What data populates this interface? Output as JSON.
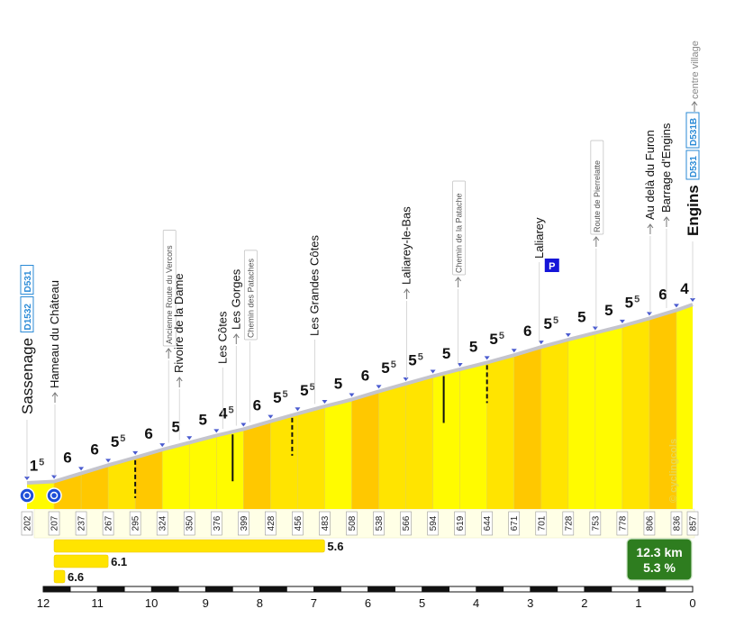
{
  "chart_data": {
    "type": "area",
    "title": "",
    "xlabel": "",
    "ylabel": "",
    "x_axis": {
      "direction": "descending",
      "range_km": [
        12,
        0
      ],
      "tick_labels": [
        "12",
        "11",
        "10",
        "9",
        "8",
        "7",
        "6",
        "5",
        "4",
        "3",
        "2",
        "1",
        "0"
      ]
    },
    "ylim": [
      195,
      870
    ],
    "segment_km": 0.5,
    "profile": {
      "distance_km": [
        12.3,
        11.8,
        11.3,
        10.8,
        10.3,
        9.8,
        9.3,
        8.8,
        8.3,
        7.8,
        7.3,
        6.8,
        6.3,
        5.8,
        5.3,
        4.8,
        4.3,
        3.8,
        3.3,
        2.8,
        2.3,
        1.8,
        1.3,
        0.8,
        0.3,
        0
      ],
      "altitude_m": [
        202,
        207,
        237,
        267,
        295,
        324,
        350,
        376,
        399,
        428,
        456,
        483,
        508,
        538,
        566,
        594,
        619,
        644,
        671,
        701,
        728,
        753,
        778,
        806,
        836,
        857
      ],
      "gradient_labels": [
        {
          "main": "1",
          "sup": "5"
        },
        {
          "main": "6",
          "sup": ""
        },
        {
          "main": "6",
          "sup": ""
        },
        {
          "main": "5",
          "sup": "5"
        },
        {
          "main": "6",
          "sup": ""
        },
        {
          "main": "5",
          "sup": ""
        },
        {
          "main": "5",
          "sup": ""
        },
        {
          "main": "4",
          "sup": "5"
        },
        {
          "main": "6",
          "sup": ""
        },
        {
          "main": "5",
          "sup": "5"
        },
        {
          "main": "5",
          "sup": "5"
        },
        {
          "main": "5",
          "sup": ""
        },
        {
          "main": "6",
          "sup": ""
        },
        {
          "main": "5",
          "sup": "5"
        },
        {
          "main": "5",
          "sup": "5"
        },
        {
          "main": "5",
          "sup": ""
        },
        {
          "main": "5",
          "sup": ""
        },
        {
          "main": "5",
          "sup": "5"
        },
        {
          "main": "6",
          "sup": ""
        },
        {
          "main": "5",
          "sup": "5"
        },
        {
          "main": "5",
          "sup": ""
        },
        {
          "main": "5",
          "sup": ""
        },
        {
          "main": "5",
          "sup": "5"
        },
        {
          "main": "6",
          "sup": ""
        },
        {
          "main": "4",
          "sup": ""
        }
      ]
    },
    "places": [
      {
        "km": 12.3,
        "name": "Sassenage",
        "style": "big",
        "roads": [
          "D1532",
          "D531"
        ]
      },
      {
        "km": 11.8,
        "name": "Hameau du Château",
        "style": "arrow"
      },
      {
        "km": 9.7,
        "name": "Ancienne Route du Vercors",
        "style": "boxed-arrow"
      },
      {
        "km": 9.5,
        "name": "Rivoire de la Dame",
        "style": "arrow"
      },
      {
        "km": 8.7,
        "name": "Les Côtes",
        "style": "plain"
      },
      {
        "km": 8.45,
        "name": "Les Gorges",
        "style": "arrow"
      },
      {
        "km": 8.2,
        "name": "Chemin des Pataches",
        "style": "boxed"
      },
      {
        "km": 7.0,
        "name": "Les Grandes Côtes",
        "style": "plain"
      },
      {
        "km": 5.3,
        "name": "Laliarey-le-Bas",
        "style": "arrow"
      },
      {
        "km": 4.35,
        "name": "Chemin de la Patache",
        "style": "boxed-arrow"
      },
      {
        "km": 2.85,
        "name": "Laliarey",
        "style": "plain"
      },
      {
        "km": 1.8,
        "name": "Route de Pierrelatte",
        "style": "boxed-arrow"
      },
      {
        "km": 0.8,
        "name": "Au delà du Furon",
        "style": "arrow"
      },
      {
        "km": 0.5,
        "name": "Barrage d'Engins",
        "style": "arrow"
      },
      {
        "km": 0.0,
        "name": "Engins",
        "style": "big",
        "roads": [
          "D531",
          "D531B"
        ],
        "extra": "centre village"
      }
    ],
    "roundabouts_km": [
      12.3,
      11.8
    ],
    "parking": {
      "km": 2.6,
      "label": "P"
    },
    "markers_solid_km": [
      8.5,
      4.6
    ],
    "markers_dashed_km": [
      10.3,
      7.4,
      3.8
    ],
    "max_gradient_bars": [
      {
        "value": "5.6",
        "km_from": 11.8,
        "km_to": 6.8
      },
      {
        "value": "6.1",
        "km_from": 11.8,
        "km_to": 10.8
      },
      {
        "value": "6.6",
        "km_from": 11.8,
        "km_to": 11.6
      }
    ],
    "summary": {
      "distance": "12.3 km",
      "gradient": "5.3 %"
    },
    "watermark": "© cyclingcols",
    "colors": {
      "light": "#FFFB00",
      "medium": "#FFE400",
      "dark": "#FFC800",
      "road": "#C4C4CC",
      "summary": "#2E7D1F",
      "road_badge": "#2A8AD6",
      "parking": "#1515D8"
    }
  }
}
